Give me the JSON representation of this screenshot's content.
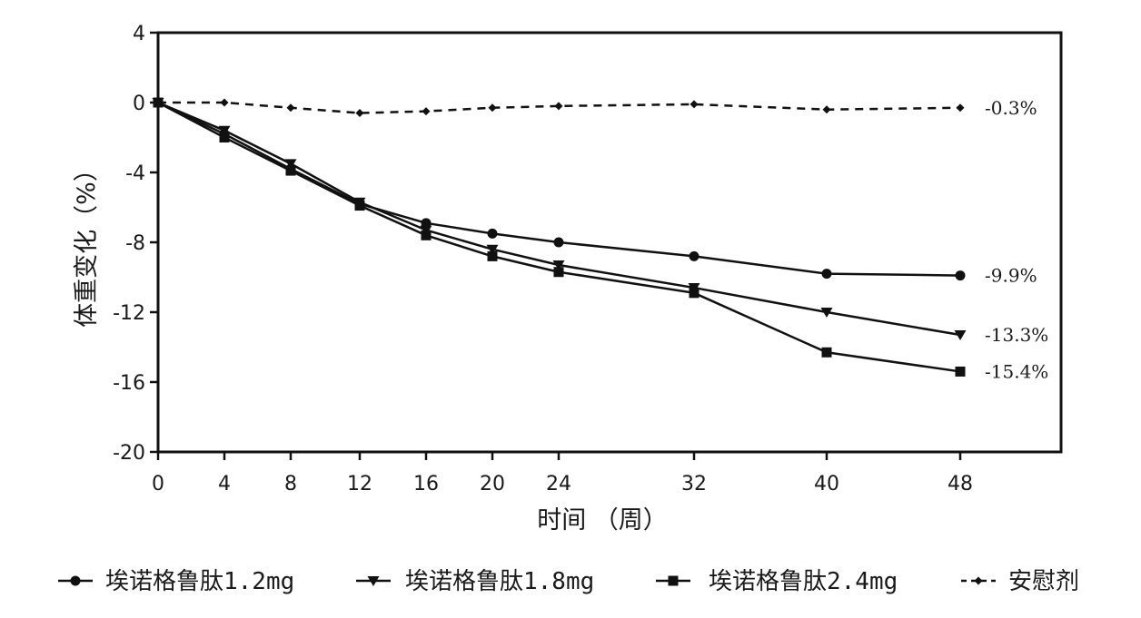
{
  "chart_data": {
    "type": "line",
    "title": "",
    "xlabel": "时间 （周）",
    "ylabel": "体重变化（%）",
    "x": [
      0,
      4,
      8,
      12,
      16,
      20,
      24,
      32,
      40,
      48
    ],
    "x_ticks": [
      "0",
      "4",
      "8",
      "12",
      "16",
      "20",
      "24",
      "32",
      "40",
      "48"
    ],
    "ylim": [
      -20,
      4
    ],
    "y_ticks": [
      "4",
      "0",
      "-4",
      "-8",
      "-12",
      "-16",
      "-20"
    ],
    "y_tick_values": [
      4,
      0,
      -4,
      -8,
      -12,
      -16,
      -20
    ],
    "grid": false,
    "legend_position": "bottom",
    "series": [
      {
        "name": "埃诺格鲁肽1.2mg",
        "marker": "circle",
        "line_style": "solid",
        "values": [
          0,
          -1.8,
          -3.8,
          -5.8,
          -6.9,
          -7.5,
          -8.0,
          -8.8,
          -9.8,
          -9.9
        ],
        "end_label": "-9.9%"
      },
      {
        "name": "埃诺格鲁肽1.8mg",
        "marker": "triangle-down",
        "line_style": "solid",
        "values": [
          0,
          -1.6,
          -3.5,
          -5.7,
          -7.3,
          -8.4,
          -9.3,
          -10.6,
          -12.0,
          -13.3
        ],
        "end_label": "-13.3%"
      },
      {
        "name": "埃诺格鲁肽2.4mg",
        "marker": "square",
        "line_style": "solid",
        "values": [
          0,
          -2.0,
          -3.9,
          -5.9,
          -7.6,
          -8.8,
          -9.7,
          -10.9,
          -14.3,
          -15.4
        ],
        "end_label": "-15.4%"
      },
      {
        "name": "安慰剂",
        "marker": "diamond",
        "line_style": "dashed",
        "values": [
          0,
          0.0,
          -0.3,
          -0.6,
          -0.5,
          -0.3,
          -0.2,
          -0.1,
          -0.4,
          -0.3
        ],
        "end_label": "-0.3%"
      }
    ]
  }
}
